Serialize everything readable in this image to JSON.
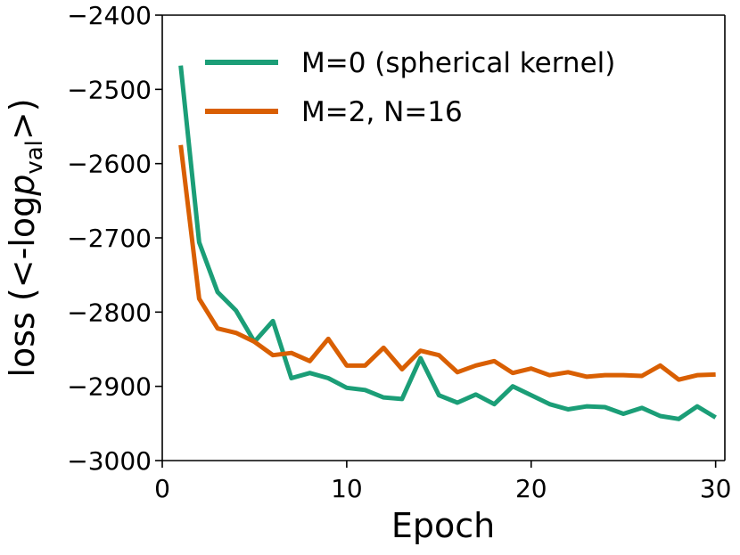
{
  "chart_data": {
    "type": "line",
    "title": "",
    "xlabel": "Epoch",
    "ylabel_prefix": "loss (<-log",
    "ylabel_var": "p",
    "ylabel_sub": "val",
    "ylabel_suffix": ">)",
    "xlim": [
      0,
      30.5
    ],
    "ylim": [
      -3000,
      -2400
    ],
    "xticks": [
      0,
      10,
      20,
      30
    ],
    "yticks": [
      -3000,
      -2900,
      -2800,
      -2700,
      -2600,
      -2500,
      -2400
    ],
    "ytick_labels": [
      "−3000",
      "−2900",
      "−2800",
      "−2700",
      "−2600",
      "−2500",
      "−2400"
    ],
    "grid": false,
    "legend_position": "top-right",
    "x": [
      1,
      2,
      3,
      4,
      5,
      6,
      7,
      8,
      9,
      10,
      11,
      12,
      13,
      14,
      15,
      16,
      17,
      18,
      19,
      20,
      21,
      22,
      23,
      24,
      25,
      26,
      27,
      28,
      29,
      30
    ],
    "series": [
      {
        "name": "M=0 (spherical kernel)",
        "color": "#1b9e77",
        "values": [
          -2468,
          -2706,
          -2773,
          -2798,
          -2840,
          -2812,
          -2889,
          -2882,
          -2889,
          -2902,
          -2905,
          -2915,
          -2917,
          -2862,
          -2912,
          -2922,
          -2911,
          -2924,
          -2900,
          -2912,
          -2924,
          -2931,
          -2927,
          -2928,
          -2937,
          -2929,
          -2940,
          -2944,
          -2927,
          -2942
        ]
      },
      {
        "name": "M=2, N=16",
        "color": "#d95f02",
        "values": [
          -2575,
          -2782,
          -2822,
          -2828,
          -2840,
          -2858,
          -2855,
          -2866,
          -2836,
          -2872,
          -2872,
          -2848,
          -2877,
          -2852,
          -2858,
          -2881,
          -2872,
          -2866,
          -2882,
          -2876,
          -2885,
          -2881,
          -2887,
          -2885,
          -2885,
          -2886,
          -2872,
          -2891,
          -2885,
          -2884
        ]
      }
    ]
  }
}
